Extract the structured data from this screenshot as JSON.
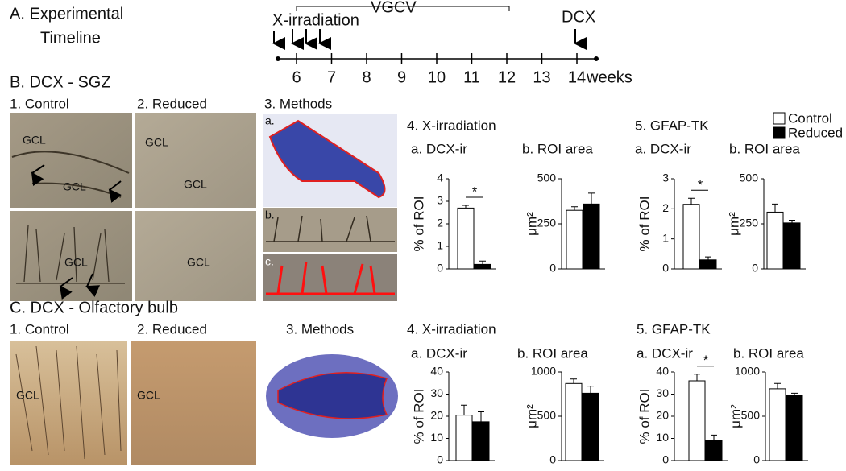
{
  "panel_a": {
    "title": "A. Experimental",
    "title_line2": "Timeline",
    "xirr": "X-irradiation",
    "vgcv": "VGCV",
    "dcx": "DCX",
    "weeks": [
      6,
      7,
      8,
      9,
      10,
      11,
      12,
      13,
      14
    ],
    "unit": "weeks"
  },
  "legend": [
    {
      "name": "Control",
      "color": "#ffffff"
    },
    {
      "name": "Reduced",
      "color": "#000000"
    }
  ],
  "panel_b": {
    "title": "B. DCX - SGZ",
    "control": "1. Control",
    "reduced": "2. Reduced",
    "methods": "3. Methods",
    "methods_parts": [
      "a.",
      "b.",
      "c."
    ],
    "gcl_labels": [
      "GCL",
      "GCL",
      "GCL",
      "GCL",
      "GCL",
      "GCL"
    ],
    "xirr": {
      "title": "4. X-irradiation",
      "charts": [
        {
          "type": "bar",
          "title": "a. DCX-ir",
          "ylabel": "% of ROI",
          "ylim": [
            0,
            4
          ],
          "yticks": [
            0,
            1,
            2,
            3,
            4
          ],
          "values": [
            2.7,
            0.2
          ],
          "errors": [
            0.12,
            0.15
          ],
          "significance": "*"
        },
        {
          "type": "bar",
          "title": "b. ROI area",
          "ylabel": "μm²",
          "ylim": [
            0,
            500
          ],
          "yticks": [
            0,
            250,
            500
          ],
          "values": [
            325,
            360
          ],
          "errors": [
            20,
            60
          ]
        }
      ]
    },
    "gfap": {
      "title": "5. GFAP-TK",
      "charts": [
        {
          "type": "bar",
          "title": "a. DCX-ir",
          "ylabel": "% of ROI",
          "ylim": [
            0,
            3
          ],
          "yticks": [
            0,
            1,
            2,
            3
          ],
          "values": [
            2.15,
            0.3
          ],
          "errors": [
            0.2,
            0.1
          ],
          "significance": "*"
        },
        {
          "type": "bar",
          "title": "b. ROI area",
          "ylabel": "μm²",
          "ylim": [
            0,
            500
          ],
          "yticks": [
            0,
            250,
            500
          ],
          "values": [
            315,
            255
          ],
          "errors": [
            45,
            15
          ]
        }
      ]
    }
  },
  "panel_c": {
    "title": "C. DCX - Olfactory bulb",
    "control": "1. Control",
    "reduced": "2. Reduced",
    "methods": "3. Methods",
    "gcl_labels": [
      "GCL",
      "GCL"
    ],
    "xirr": {
      "title": "4. X-irradiation",
      "charts": [
        {
          "type": "bar",
          "title": "a. DCX-ir",
          "ylabel": "% of ROI",
          "ylim": [
            0,
            40
          ],
          "yticks": [
            0,
            10,
            20,
            30,
            40
          ],
          "values": [
            20.5,
            17.5
          ],
          "errors": [
            4.5,
            4.5
          ]
        },
        {
          "type": "bar",
          "title": "b. ROI area",
          "ylabel": "μm²",
          "ylim": [
            0,
            1000
          ],
          "yticks": [
            0,
            500,
            1000
          ],
          "values": [
            870,
            760
          ],
          "errors": [
            50,
            80
          ]
        }
      ]
    },
    "gfap": {
      "title": "5. GFAP-TK",
      "charts": [
        {
          "type": "bar",
          "title": "a. DCX-ir",
          "ylabel": "% of ROI",
          "ylim": [
            0,
            40
          ],
          "yticks": [
            0,
            10,
            20,
            30,
            40
          ],
          "values": [
            36,
            9
          ],
          "errors": [
            3,
            2.5
          ],
          "significance": "*"
        },
        {
          "type": "bar",
          "title": "b. ROI area",
          "ylabel": "μm²",
          "ylim": [
            0,
            1000
          ],
          "yticks": [
            0,
            500,
            1000
          ],
          "values": [
            810,
            735
          ],
          "errors": [
            60,
            25
          ]
        }
      ]
    }
  }
}
